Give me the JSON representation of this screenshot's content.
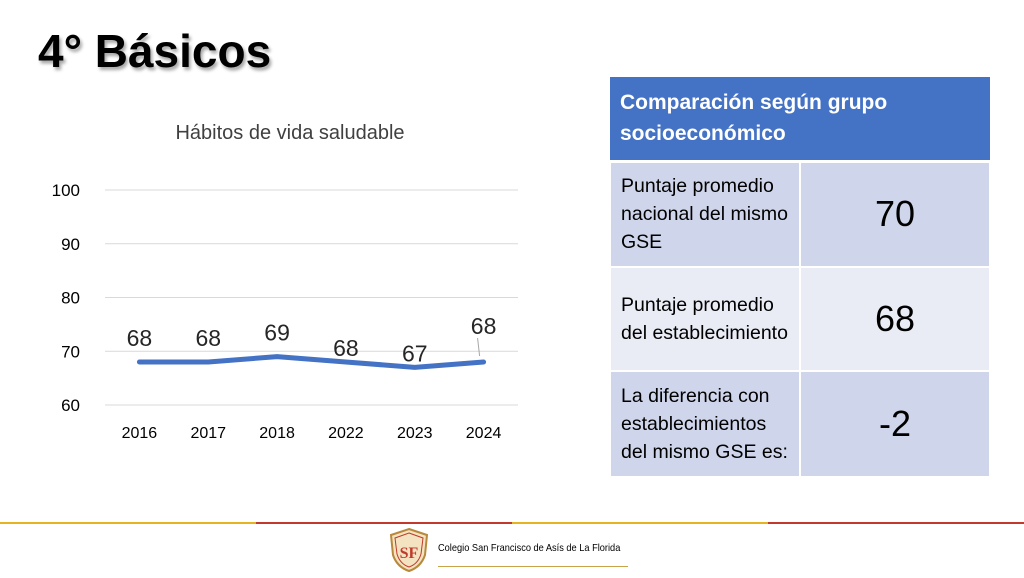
{
  "slide": {
    "title": "4° Básicos"
  },
  "chart_data": {
    "type": "line",
    "title": "Hábitos de vida saludable",
    "categories": [
      "2016",
      "2017",
      "2018",
      "2022",
      "2023",
      "2024"
    ],
    "values": [
      68,
      68,
      69,
      68,
      67,
      68
    ],
    "ylim": [
      60,
      100
    ],
    "yticks": [
      60,
      70,
      80,
      90,
      100
    ],
    "grid": true,
    "legend": "none",
    "color": "#4472c4"
  },
  "table": {
    "header": "Comparación según grupo socioeconómico",
    "rows": [
      {
        "label": "Puntaje promedio nacional del mismo GSE",
        "value": "70"
      },
      {
        "label": "Puntaje promedio del establecimiento",
        "value": "68"
      },
      {
        "label": "La diferencia con establecimientos del mismo GSE es:",
        "value": "-2"
      }
    ],
    "header_color": "#4472c4",
    "row_colors": [
      "#cfd5ea",
      "#e9ebf5",
      "#cfd5ea"
    ]
  },
  "footer": {
    "school_name": "Colegio San Francisco de Asís de La Florida",
    "logo_letters": "SF",
    "line_colors": [
      "#e6b422",
      "#c0392b"
    ]
  }
}
